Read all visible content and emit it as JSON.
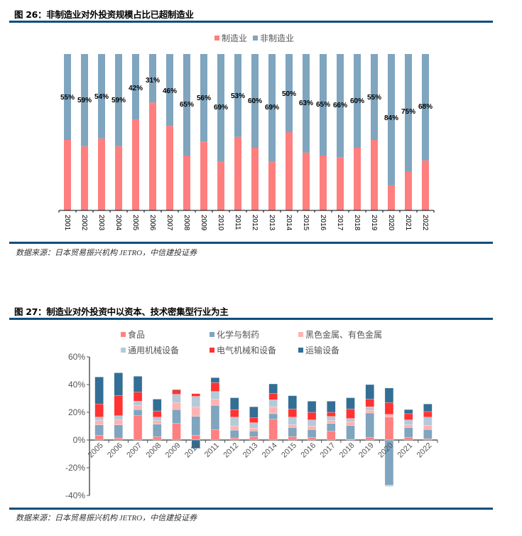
{
  "figure26": {
    "title": "图 26：非制造业对外投资规模占比已超制造业",
    "source": "数据来源：日本贸易振兴机构 JETRO，中信建投证券"
  },
  "figure27": {
    "title": "图 27：制造业对外投资中以资本、技术密集型行业为主",
    "source": "数据来源：日本贸易振兴机构 JETRO，中信建投证券"
  },
  "chart_data": [
    {
      "type": "bar",
      "stacked": "percent",
      "title": "非制造业对外投资规模占比已超制造业",
      "categories": [
        "2001",
        "2002",
        "2003",
        "2004",
        "2005",
        "2006",
        "2007",
        "2008",
        "2009",
        "2010",
        "2011",
        "2012",
        "2013",
        "2014",
        "2015",
        "2016",
        "2017",
        "2018",
        "2019",
        "2020",
        "2021",
        "2022"
      ],
      "series": [
        {
          "name": "制造业",
          "color": "#ff7f7f",
          "values": [
            45,
            41,
            46,
            41,
            58,
            69,
            54,
            35,
            44,
            31,
            47,
            40,
            31,
            50,
            37,
            35,
            34,
            40,
            45,
            16,
            25,
            32
          ]
        },
        {
          "name": "非制造业",
          "color": "#7fa5bf",
          "values": [
            55,
            59,
            54,
            59,
            42,
            31,
            46,
            65,
            56,
            69,
            53,
            60,
            69,
            50,
            63,
            65,
            66,
            60,
            55,
            84,
            75,
            68
          ]
        }
      ],
      "data_labels": [
        "55%",
        "59%",
        "54%",
        "59%",
        "42%",
        "31%",
        "46%",
        "65%",
        "56%",
        "69%",
        "53%",
        "60%",
        "69%",
        "50%",
        "63%",
        "65%",
        "66%",
        "60%",
        "55%",
        "84%",
        "75%",
        "68%"
      ],
      "legend": {
        "position": "top-center",
        "entries": [
          "制造业",
          "非制造业"
        ]
      },
      "xlabel": "",
      "ylabel": "",
      "ylim": [
        0,
        100
      ]
    },
    {
      "type": "bar",
      "stacked": true,
      "title": "制造业对外投资中以资本、技术密集型行业为主",
      "categories": [
        "2005",
        "2006",
        "2007",
        "2008",
        "2009",
        "2010",
        "2011",
        "2012",
        "2013",
        "2014",
        "2015",
        "2016",
        "2017",
        "2018",
        "2019",
        "2020",
        "2021",
        "2022"
      ],
      "series": [
        {
          "name": "食品",
          "color": "#ff8080",
          "values": [
            3.5,
            1.5,
            17.5,
            2.5,
            12,
            3.5,
            7.5,
            1.5,
            2.5,
            15,
            2.5,
            2,
            6.5,
            0.5,
            2,
            16.5,
            2,
            1
          ]
        },
        {
          "name": "化学与制药",
          "color": "#7fa5bf",
          "values": [
            7.5,
            9.5,
            4.5,
            9,
            10,
            13.5,
            17.5,
            5.5,
            4,
            4,
            6.5,
            5.5,
            5.5,
            10,
            17.5,
            -32.5,
            7,
            6.5
          ]
        },
        {
          "name": "黑色金属、有色金属",
          "color": "#ffb3b3",
          "values": [
            3,
            3.5,
            3,
            2.5,
            5,
            7,
            4.5,
            3,
            2,
            5,
            2,
            2.5,
            2,
            2.5,
            2,
            2,
            2,
            3
          ]
        },
        {
          "name": "通用机械设备",
          "color": "#b4cad9",
          "values": [
            2.5,
            3,
            3,
            2.5,
            6,
            7.5,
            5.5,
            6.5,
            4,
            5,
            5.5,
            4.5,
            3,
            2.5,
            2.5,
            -1,
            3.5,
            6
          ]
        },
        {
          "name": "电气机械和设备",
          "color": "#ff3333",
          "values": [
            9.5,
            14.5,
            6.5,
            4.5,
            3,
            2,
            6.5,
            5.5,
            3.5,
            4.5,
            6,
            5.5,
            3,
            7,
            5.5,
            8.5,
            4.5,
            4
          ]
        },
        {
          "name": "运输设备",
          "color": "#336e95",
          "values": [
            19.5,
            16.5,
            11.5,
            8.5,
            0.5,
            -6,
            3.5,
            8.5,
            8,
            7,
            9.5,
            8,
            8,
            8,
            10.5,
            10.5,
            3,
            5.5
          ]
        }
      ],
      "legend": {
        "position": "top",
        "entries": [
          "食品",
          "化学与制药",
          "黑色金属、有色金属",
          "通用机械设备",
          "电气机械和设备",
          "运输设备"
        ]
      },
      "yticks": [
        "60%",
        "40%",
        "20%",
        "0%",
        "-20%",
        "-40%"
      ],
      "xlabel": "",
      "ylabel": "",
      "ylim": [
        -40,
        60
      ]
    }
  ]
}
